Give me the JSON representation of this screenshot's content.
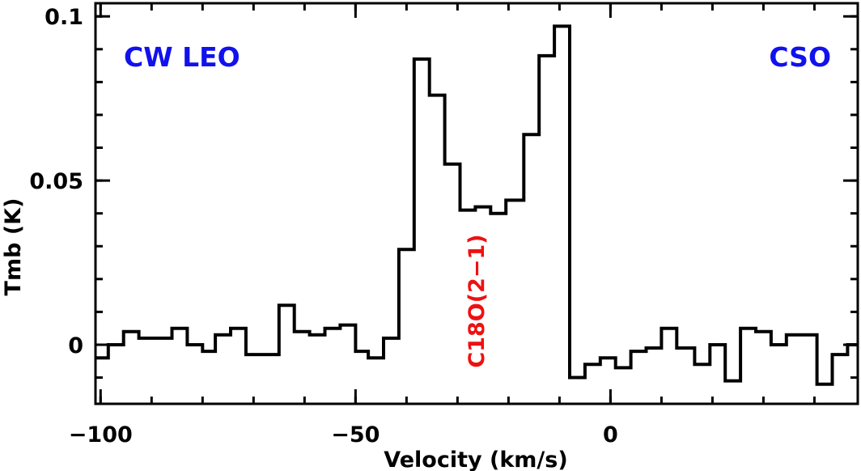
{
  "chart_data": {
    "type": "line",
    "style": "step",
    "xlabel": "Velocity (km/s)",
    "ylabel": "Tmb (K)",
    "xlim": [
      -101,
      48.5
    ],
    "ylim": [
      -0.018,
      0.104
    ],
    "x_ticks": [
      {
        "value": -100,
        "label": "−100"
      },
      {
        "value": -50,
        "label": "−50"
      },
      {
        "value": 0,
        "label": "0"
      }
    ],
    "y_ticks": [
      {
        "value": 0,
        "label": "0"
      },
      {
        "value": 0.05,
        "label": "0.05"
      },
      {
        "value": 0.1,
        "label": "0.1"
      }
    ],
    "x_minor_step": 10,
    "y_minor_step": 0.01,
    "grid": false,
    "annotations": [
      {
        "text": "CW LEO",
        "position": "top-left",
        "color": "#1111ee"
      },
      {
        "text": "CSO",
        "position": "top-right",
        "color": "#1111ee"
      },
      {
        "text": "C18O(2−1)",
        "position": "center-rotated",
        "color": "#ee1111"
      }
    ],
    "x": [
      -101.0,
      -98.5,
      -95.5,
      -92.5,
      -89.0,
      -86.0,
      -83.0,
      -80.0,
      -77.5,
      -74.5,
      -71.5,
      -68.0,
      -65.0,
      -62.0,
      -59.0,
      -56.0,
      -53.0,
      -50.0,
      -47.5,
      -44.5,
      -41.5,
      -38.5,
      -35.5,
      -32.5,
      -29.5,
      -26.5,
      -23.5,
      -20.5,
      -17.0,
      -14.0,
      -11.0,
      -8.0,
      -5.0,
      -2.0,
      1.0,
      4.0,
      7.0,
      10.0,
      13.0,
      16.5,
      19.5,
      22.5,
      25.5,
      28.5,
      31.5,
      34.5,
      37.5,
      40.5,
      43.5,
      46.5
    ],
    "y": [
      -0.004,
      0.0,
      0.004,
      0.002,
      0.002,
      0.005,
      0.0,
      -0.002,
      0.003,
      0.005,
      -0.003,
      -0.003,
      0.012,
      0.004,
      0.003,
      0.005,
      0.006,
      -0.002,
      -0.004,
      0.002,
      0.029,
      0.087,
      0.076,
      0.055,
      0.041,
      0.042,
      0.04,
      0.044,
      0.064,
      0.088,
      0.097,
      -0.01,
      -0.006,
      -0.004,
      -0.007,
      -0.002,
      -0.001,
      0.005,
      -0.001,
      -0.006,
      0.0,
      -0.011,
      0.005,
      0.004,
      0.0,
      0.003,
      0.003,
      -0.012,
      -0.003,
      0.0
    ]
  }
}
